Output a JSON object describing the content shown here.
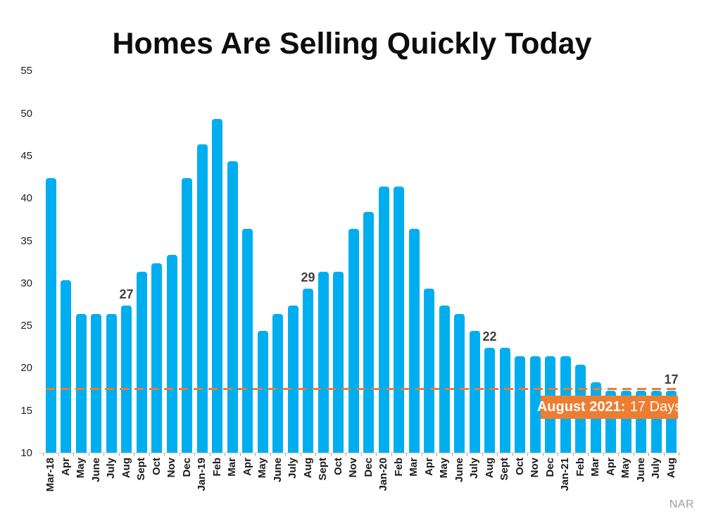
{
  "title": "Homes Are Selling Quickly Today",
  "source": "NAR",
  "colors": {
    "bar_blue": "#00AEEF",
    "accent_orange": "#ED7D31",
    "value_label_gray": "#404040",
    "source_gray": "#a0a0a0"
  },
  "annotation": {
    "text_bold": "August 2021:",
    "text_regular": "17 Days"
  },
  "chart_data": {
    "type": "bar",
    "title": "Homes Are Selling Quickly Today",
    "xlabel": "",
    "ylabel": "",
    "ylim": [
      10,
      55
    ],
    "yticks": [
      55,
      50,
      45,
      40,
      35,
      30,
      25,
      20,
      15,
      10
    ],
    "grid": false,
    "legend": "none",
    "categories": [
      "Mar-18",
      "Apr",
      "May",
      "June",
      "July",
      "Aug",
      "Sept",
      "Oct",
      "Nov",
      "Dec",
      "Jan-19",
      "Feb",
      "Mar",
      "Apr",
      "May",
      "June",
      "July",
      "Aug",
      "Sept",
      "Oct",
      "Nov",
      "Dec",
      "Jan-20",
      "Feb",
      "Mar",
      "Apr",
      "May",
      "June",
      "July",
      "Aug",
      "Sept",
      "Oct",
      "Nov",
      "Dec",
      "Jan-21",
      "Feb",
      "Mar",
      "Apr",
      "May",
      "June",
      "July",
      "Aug"
    ],
    "values": [
      42,
      30,
      26,
      26,
      26,
      27,
      31,
      32,
      33,
      42,
      46,
      49,
      44,
      36,
      24,
      26,
      27,
      29,
      31,
      31,
      36,
      38,
      41,
      41,
      36,
      29,
      27,
      26,
      24,
      22,
      22,
      21,
      21,
      21,
      21,
      20,
      18,
      17,
      17,
      17,
      17,
      17
    ],
    "bar_labels": [
      {
        "index": 5,
        "text": "27"
      },
      {
        "index": 17,
        "text": "29"
      },
      {
        "index": 29,
        "text": "22"
      },
      {
        "index": 41,
        "text": "17"
      }
    ],
    "reference_line": {
      "value": 17,
      "style": "dashed",
      "color": "#ED7D31"
    },
    "annotation_text": "August 2021: 17 Days",
    "source": "NAR"
  }
}
